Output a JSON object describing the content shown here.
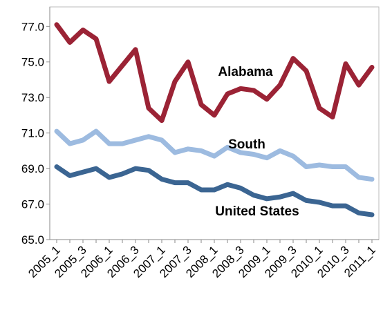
{
  "chart_data": {
    "type": "line",
    "categories": [
      "2005_1",
      null,
      "2005_3",
      null,
      "2006_1",
      null,
      "2006_3",
      null,
      "2007_1",
      null,
      "2007_3",
      null,
      "2008_1",
      null,
      "2008_3",
      null,
      "2009_1",
      null,
      "2009_3",
      null,
      "2010_1",
      null,
      "2010_3",
      null,
      "2011_1"
    ],
    "series": [
      {
        "name": "Alabama",
        "color": "#9b2335",
        "values": [
          77.1,
          76.1,
          76.8,
          76.3,
          73.9,
          74.8,
          75.7,
          72.4,
          71.7,
          73.9,
          75.0,
          72.6,
          72.0,
          73.2,
          73.5,
          73.4,
          72.9,
          73.7,
          75.2,
          74.5,
          72.4,
          71.9,
          74.9,
          73.7,
          74.7
        ]
      },
      {
        "name": "South",
        "color": "#9dbbe0",
        "values": [
          71.1,
          70.4,
          70.6,
          71.1,
          70.4,
          70.4,
          70.6,
          70.8,
          70.6,
          69.9,
          70.1,
          70.0,
          69.7,
          70.2,
          69.9,
          69.8,
          69.6,
          70.0,
          69.7,
          69.1,
          69.2,
          69.1,
          69.1,
          68.5,
          68.4
        ]
      },
      {
        "name": "United States",
        "color": "#3b6592",
        "values": [
          69.1,
          68.6,
          68.8,
          69.0,
          68.5,
          68.7,
          69.0,
          68.9,
          68.4,
          68.2,
          68.2,
          67.8,
          67.8,
          68.1,
          67.9,
          67.5,
          67.3,
          67.4,
          67.6,
          67.2,
          67.1,
          66.9,
          66.9,
          66.5,
          66.4
        ]
      }
    ],
    "ylim": [
      65,
      78.1
    ],
    "yticks": [
      {
        "value": 65,
        "label": "65.0"
      },
      {
        "value": 67,
        "label": "67.0"
      },
      {
        "value": 69,
        "label": "69.0"
      },
      {
        "value": 71,
        "label": "71.0"
      },
      {
        "value": 73,
        "label": "73.0"
      },
      {
        "value": 75,
        "label": "75.0"
      },
      {
        "value": 77,
        "label": "77.0"
      }
    ],
    "grid": false
  }
}
